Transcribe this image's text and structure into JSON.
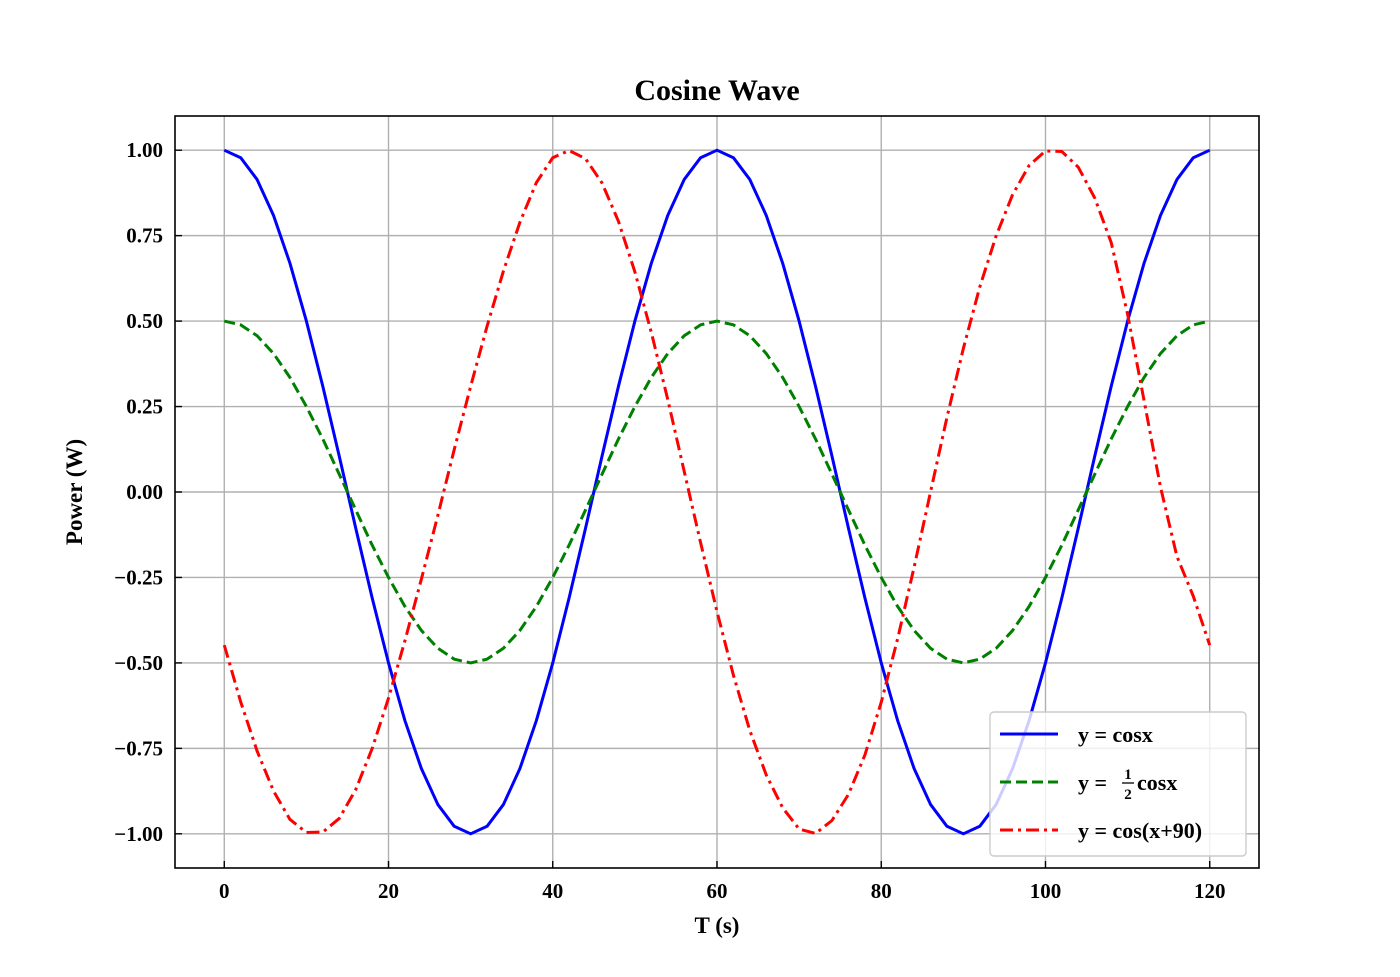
{
  "chart_data": {
    "type": "line",
    "title": "Cosine Wave",
    "xlabel": "T (s)",
    "ylabel": "Power (W)",
    "xlim": [
      -6,
      126
    ],
    "ylim": [
      -1.1,
      1.1
    ],
    "xticks": [
      0,
      20,
      40,
      60,
      80,
      100,
      120
    ],
    "xtick_labels": [
      "0",
      "20",
      "40",
      "60",
      "80",
      "100",
      "120"
    ],
    "yticks": [
      1.0,
      0.75,
      0.5,
      0.25,
      0.0,
      -0.25,
      -0.5,
      -0.75,
      -1.0
    ],
    "ytick_labels": [
      "1.00",
      "0.75",
      "0.50",
      "0.25",
      "0.00",
      "−0.25",
      "−0.50",
      "−0.75",
      "−1.00"
    ],
    "grid": true,
    "legend_position": "lower-right",
    "x": [
      0,
      2,
      4,
      6,
      8,
      10,
      12,
      14,
      16,
      18,
      20,
      22,
      24,
      26,
      28,
      30,
      32,
      34,
      36,
      38,
      40,
      42,
      44,
      46,
      48,
      50,
      52,
      54,
      56,
      58,
      60,
      62,
      64,
      66,
      68,
      70,
      72,
      74,
      76,
      78,
      80,
      82,
      84,
      86,
      88,
      90,
      92,
      94,
      96,
      98,
      100,
      102,
      104,
      106,
      108,
      110,
      112,
      114,
      116,
      118,
      120
    ],
    "series": [
      {
        "name": "y = cosx",
        "legend_main": "y = cosx",
        "color": "#0000ff",
        "linestyle": "solid",
        "values": [
          1.0,
          0.978,
          0.914,
          0.809,
          0.669,
          0.5,
          0.309,
          0.105,
          -0.105,
          -0.309,
          -0.5,
          -0.669,
          -0.809,
          -0.914,
          -0.978,
          -1.0,
          -0.978,
          -0.914,
          -0.809,
          -0.669,
          -0.5,
          -0.309,
          -0.105,
          0.105,
          0.309,
          0.5,
          0.669,
          0.809,
          0.914,
          0.978,
          1.0,
          0.978,
          0.914,
          0.809,
          0.669,
          0.5,
          0.309,
          0.105,
          -0.105,
          -0.309,
          -0.5,
          -0.669,
          -0.809,
          -0.914,
          -0.978,
          -1.0,
          -0.978,
          -0.914,
          -0.809,
          -0.669,
          -0.5,
          -0.309,
          -0.105,
          0.105,
          0.309,
          0.5,
          0.669,
          0.809,
          0.914,
          0.978,
          1.0
        ]
      },
      {
        "name": "y = 1/2 cosx",
        "legend_main": "y = ",
        "legend_num": "1",
        "legend_den": "2",
        "legend_tail": "cosx",
        "color": "#008000",
        "linestyle": "dashed",
        "values": [
          0.5,
          0.489,
          0.457,
          0.405,
          0.335,
          0.25,
          0.155,
          0.052,
          -0.052,
          -0.155,
          -0.25,
          -0.335,
          -0.405,
          -0.457,
          -0.489,
          -0.5,
          -0.489,
          -0.457,
          -0.405,
          -0.335,
          -0.25,
          -0.155,
          -0.052,
          0.052,
          0.155,
          0.25,
          0.335,
          0.405,
          0.457,
          0.489,
          0.5,
          0.489,
          0.457,
          0.405,
          0.335,
          0.25,
          0.155,
          0.052,
          -0.052,
          -0.155,
          -0.25,
          -0.335,
          -0.405,
          -0.457,
          -0.489,
          -0.5,
          -0.489,
          -0.457,
          -0.405,
          -0.335,
          -0.25,
          -0.155,
          -0.052,
          0.052,
          0.155,
          0.25,
          0.335,
          0.405,
          0.457,
          0.489,
          0.5
        ]
      },
      {
        "name": "y = cos(x+90)",
        "legend_main": "y = cos(x+90)",
        "color": "#ff0000",
        "linestyle": "dashdot",
        "values": [
          -0.448,
          -0.614,
          -0.758,
          -0.875,
          -0.958,
          -0.996,
          -0.995,
          -0.955,
          -0.871,
          -0.751,
          -0.603,
          -0.435,
          -0.255,
          -0.069,
          0.124,
          0.309,
          0.485,
          0.647,
          0.789,
          0.905,
          0.978,
          0.999,
          0.975,
          0.904,
          0.792,
          0.644,
          0.467,
          0.271,
          0.061,
          -0.148,
          -0.35,
          -0.536,
          -0.698,
          -0.828,
          -0.924,
          -0.986,
          -0.999,
          -0.961,
          -0.885,
          -0.77,
          -0.615,
          -0.429,
          -0.22,
          0.0,
          0.218,
          0.42,
          0.6,
          0.75,
          0.87,
          0.955,
          0.998,
          0.996,
          0.95,
          0.86,
          0.73,
          0.52,
          0.268,
          0.015,
          -0.188,
          -0.305,
          -0.448
        ]
      }
    ]
  }
}
